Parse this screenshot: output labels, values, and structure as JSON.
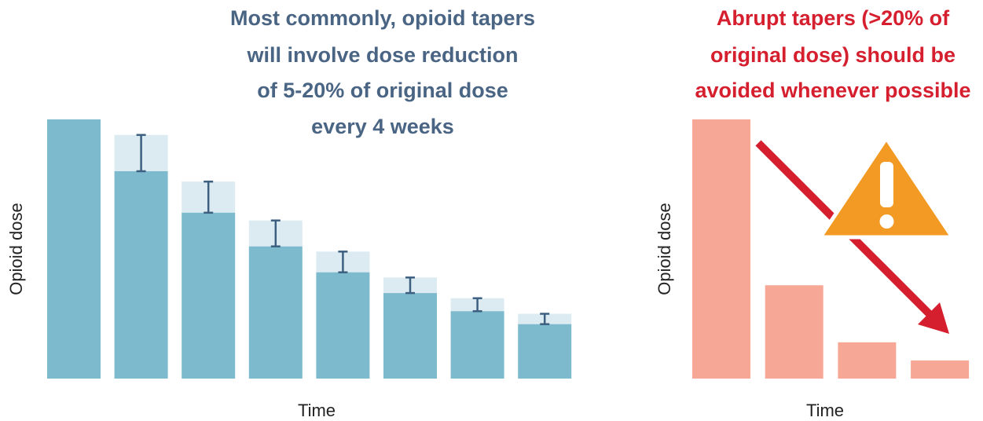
{
  "chart_data": [
    {
      "type": "bar",
      "title": [
        "Most commonly, opioid tapers",
        "will involve dose reduction",
        "of 5-20% of original dose",
        "every 4 weeks"
      ],
      "y_label": "Opioid dose",
      "x_label": "Time",
      "values": [
        100,
        80,
        64,
        51,
        41,
        33,
        26,
        21
      ],
      "range": [
        null,
        14,
        12,
        10,
        8,
        6,
        5,
        4
      ],
      "color": "#7dbacd",
      "range_color": "#dbebf1",
      "error_color": "#3d5f80",
      "title_color": "#4a6583",
      "ylim": [
        0,
        100
      ]
    },
    {
      "type": "bar",
      "title": [
        "Abrupt tapers (>20% of",
        "original dose) should be",
        "avoided whenever possible"
      ],
      "y_label": "Opioid dose",
      "x_label": "Time",
      "values": [
        100,
        36,
        14,
        7
      ],
      "color": "#f7a796",
      "title_color": "#d61f2e",
      "ylim": [
        0,
        100
      ]
    }
  ]
}
